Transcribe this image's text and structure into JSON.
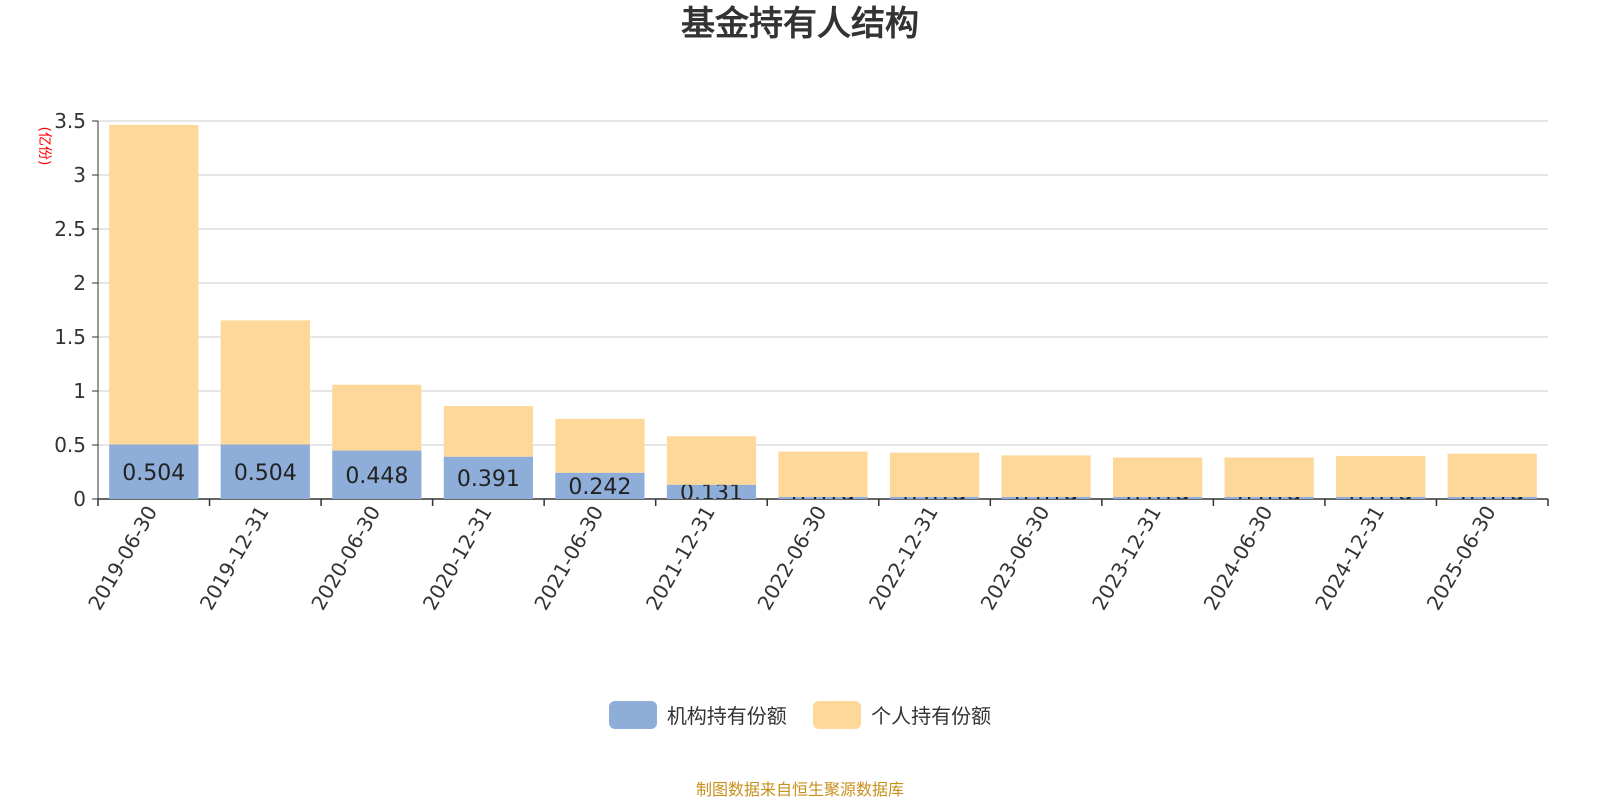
{
  "title": "基金持有人结构",
  "source_note": "制图数据来自恒生聚源数据库",
  "colors": {
    "institutional": "#8eadd9",
    "individual": "#fed898",
    "grid": "#cccccc",
    "axis": "#333333",
    "yunit": "#ff0000",
    "source": "#c8901e"
  },
  "legend": [
    {
      "label": "机构持有份额",
      "color": "#8eadd9"
    },
    {
      "label": "个人持有份额",
      "color": "#fed898"
    }
  ],
  "chart_data": {
    "type": "bar",
    "stacked": true,
    "title": "基金持有人结构",
    "ylabel": "(亿份)",
    "ylim": [
      0,
      3.5
    ],
    "yticks": [
      "0",
      "0.5",
      "1",
      "1.5",
      "2",
      "2.5",
      "3",
      "3.5"
    ],
    "grid": true,
    "legend_position": "bottom",
    "categories": [
      "2019-06-30",
      "2019-12-31",
      "2020-06-30",
      "2020-12-31",
      "2021-06-30",
      "2021-12-31",
      "2022-06-30",
      "2022-12-31",
      "2023-06-30",
      "2023-12-31",
      "2024-06-30",
      "2024-12-31",
      "2025-06-30"
    ],
    "series": [
      {
        "name": "机构持有份额",
        "values": [
          0.504,
          0.504,
          0.448,
          0.391,
          0.242,
          0.131,
          0.019,
          0.019,
          0.019,
          0.019,
          0.019,
          0.019,
          0.019
        ],
        "labels": [
          "0.504",
          "0.504",
          "0.448",
          "0.391",
          "0.242",
          "0.131",
          "0.019",
          "0.019",
          "0.019",
          "0.019",
          "0.019",
          "0.019",
          "0.019"
        ]
      },
      {
        "name": "个人持有份额",
        "values": [
          2.96,
          1.15,
          0.61,
          0.47,
          0.5,
          0.45,
          0.42,
          0.41,
          0.385,
          0.365,
          0.365,
          0.38,
          0.4
        ]
      }
    ]
  }
}
